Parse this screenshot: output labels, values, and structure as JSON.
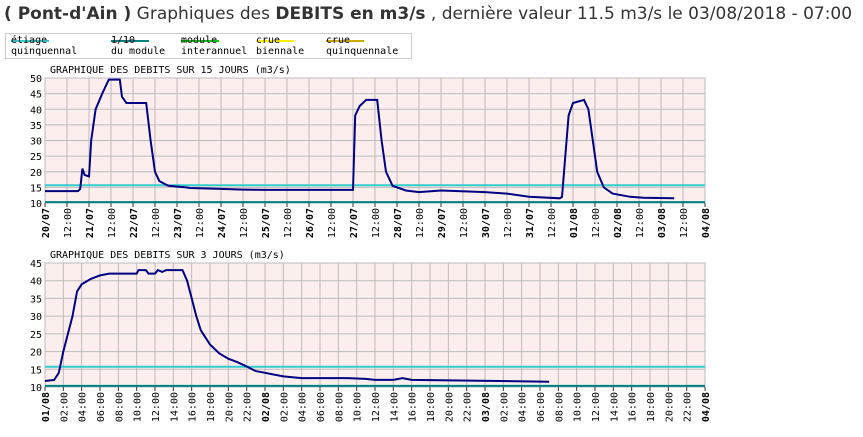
{
  "title": [
    {
      "text": "( Pont-d'Ain )",
      "bold": true
    },
    {
      "text": " Graphiques des ",
      "bold": false
    },
    {
      "text": "DEBITS en m3/s",
      "bold": true
    },
    {
      "text": " , dernière valeur 11.5 m3/s le 03/08/2018 - 07:00",
      "bold": false
    }
  ],
  "legend": [
    {
      "name": "étiage\nquinquennal",
      "color": "#33cccc"
    },
    {
      "name": "1/10\ndu module",
      "color": "#008080"
    },
    {
      "name": "module\ninterannuel",
      "color": "#00cc00"
    },
    {
      "name": "crue\nbiennale",
      "color": "#ffee00"
    },
    {
      "name": "crue\nquinquennale",
      "color": "#ccaa00"
    }
  ],
  "chart_data": [
    {
      "type": "line",
      "title": "GRAPHIQUE DES DEBITS SUR 15 JOURS (m3/s)",
      "grid": true,
      "xlim": [
        0,
        15
      ],
      "xticks": [
        {
          "value": 0,
          "label": "20/07"
        },
        {
          "value": 0.5,
          "label": "12:00"
        },
        {
          "value": 1,
          "label": "21/07"
        },
        {
          "value": 1.5,
          "label": "12:00"
        },
        {
          "value": 2,
          "label": "22/07"
        },
        {
          "value": 2.5,
          "label": "12:00"
        },
        {
          "value": 3,
          "label": "23/07"
        },
        {
          "value": 3.5,
          "label": "12:00"
        },
        {
          "value": 4,
          "label": "24/07"
        },
        {
          "value": 4.5,
          "label": "12:00"
        },
        {
          "value": 5,
          "label": "25/07"
        },
        {
          "value": 5.5,
          "label": "12:00"
        },
        {
          "value": 6,
          "label": "26/07"
        },
        {
          "value": 6.5,
          "label": "12:00"
        },
        {
          "value": 7,
          "label": "27/07"
        },
        {
          "value": 7.5,
          "label": "12:00"
        },
        {
          "value": 8,
          "label": "28/07"
        },
        {
          "value": 8.5,
          "label": "12:00"
        },
        {
          "value": 9,
          "label": "29/07"
        },
        {
          "value": 9.5,
          "label": "12:00"
        },
        {
          "value": 10,
          "label": "30/07"
        },
        {
          "value": 10.5,
          "label": "12:00"
        },
        {
          "value": 11,
          "label": "31/07"
        },
        {
          "value": 11.5,
          "label": "12:00"
        },
        {
          "value": 12,
          "label": "01/08"
        },
        {
          "value": 12.5,
          "label": "12:00"
        },
        {
          "value": 13,
          "label": "02/08"
        },
        {
          "value": 13.5,
          "label": "12:00"
        },
        {
          "value": 14,
          "label": "03/08"
        },
        {
          "value": 14.5,
          "label": "12:00"
        },
        {
          "value": 15,
          "label": "04/08"
        }
      ],
      "ylim": [
        10,
        50
      ],
      "yticks": [
        10,
        15,
        20,
        25,
        30,
        35,
        40,
        45,
        50
      ],
      "reference_lines": [
        {
          "value": 15.7,
          "color": "#33cccc"
        },
        {
          "value": 10.3,
          "color": "#008080"
        }
      ],
      "series": [
        {
          "color": "#000080",
          "x": [
            0,
            0.75,
            0.8,
            0.85,
            0.9,
            1.0,
            1.05,
            1.15,
            1.3,
            1.45,
            1.7,
            1.75,
            1.85,
            2.3,
            2.4,
            2.5,
            2.6,
            2.8,
            3.2,
            3.3,
            4.0,
            4.5,
            5.0,
            6.0,
            7.0,
            7.05,
            7.15,
            7.3,
            7.55,
            7.65,
            7.75,
            7.9,
            8.2,
            8.5,
            9.0,
            10.0,
            10.5,
            11.0,
            11.7,
            11.75,
            11.9,
            12.0,
            12.25,
            12.35,
            12.45,
            12.55,
            12.7,
            12.9,
            13.3,
            13.6,
            14.3
          ],
          "values": [
            13.8,
            13.8,
            14.5,
            21,
            19,
            18.5,
            30,
            40,
            45,
            49.5,
            49.5,
            44,
            42,
            42,
            30,
            20,
            17,
            15.5,
            15,
            14.8,
            14.5,
            14.3,
            14.2,
            14.2,
            14.2,
            38,
            41,
            43,
            43,
            30,
            20,
            15.5,
            14,
            13.5,
            14,
            13.5,
            13,
            12,
            11.5,
            12,
            38,
            42,
            43,
            40,
            30,
            20,
            15,
            13,
            12,
            11.7,
            11.5
          ]
        }
      ]
    },
    {
      "type": "line",
      "title": "GRAPHIQUE DES DEBITS SUR 3 JOURS (m3/s)",
      "grid": true,
      "xlim": [
        0,
        72
      ],
      "xticks": [
        {
          "value": 0,
          "label": "01/08"
        },
        {
          "value": 2,
          "label": "02:00"
        },
        {
          "value": 4,
          "label": "04:00"
        },
        {
          "value": 6,
          "label": "06:00"
        },
        {
          "value": 8,
          "label": "08:00"
        },
        {
          "value": 10,
          "label": "10:00"
        },
        {
          "value": 12,
          "label": "12:00"
        },
        {
          "value": 14,
          "label": "14:00"
        },
        {
          "value": 16,
          "label": "16:00"
        },
        {
          "value": 18,
          "label": "18:00"
        },
        {
          "value": 20,
          "label": "20:00"
        },
        {
          "value": 22,
          "label": "22:00"
        },
        {
          "value": 24,
          "label": "02/08"
        },
        {
          "value": 26,
          "label": "02:00"
        },
        {
          "value": 28,
          "label": "04:00"
        },
        {
          "value": 30,
          "label": "06:00"
        },
        {
          "value": 32,
          "label": "08:00"
        },
        {
          "value": 34,
          "label": "10:00"
        },
        {
          "value": 36,
          "label": "12:00"
        },
        {
          "value": 38,
          "label": "14:00"
        },
        {
          "value": 40,
          "label": "16:00"
        },
        {
          "value": 42,
          "label": "18:00"
        },
        {
          "value": 44,
          "label": "20:00"
        },
        {
          "value": 46,
          "label": "22:00"
        },
        {
          "value": 48,
          "label": "03/08"
        },
        {
          "value": 50,
          "label": "02:00"
        },
        {
          "value": 52,
          "label": "04:00"
        },
        {
          "value": 54,
          "label": "06:00"
        },
        {
          "value": 56,
          "label": "08:00"
        },
        {
          "value": 58,
          "label": "10:00"
        },
        {
          "value": 60,
          "label": "12:00"
        },
        {
          "value": 62,
          "label": "14:00"
        },
        {
          "value": 64,
          "label": "16:00"
        },
        {
          "value": 66,
          "label": "18:00"
        },
        {
          "value": 68,
          "label": "20:00"
        },
        {
          "value": 70,
          "label": "22:00"
        },
        {
          "value": 72,
          "label": "04/08"
        }
      ],
      "ylim": [
        10,
        45
      ],
      "yticks": [
        10,
        15,
        20,
        25,
        30,
        35,
        40,
        45
      ],
      "reference_lines": [
        {
          "value": 15.7,
          "color": "#33cccc"
        },
        {
          "value": 10.3,
          "color": "#008080"
        }
      ],
      "series": [
        {
          "color": "#000080",
          "x": [
            0,
            1,
            1.5,
            2,
            3,
            3.5,
            4,
            5,
            6,
            7,
            10,
            10.2,
            11,
            11.3,
            12,
            12.3,
            12.8,
            13.2,
            15,
            15.5,
            16,
            16.5,
            17,
            18,
            19,
            20,
            21,
            22,
            23,
            24,
            25,
            26,
            28,
            33,
            35,
            36,
            38,
            39,
            40,
            55
          ],
          "values": [
            11.7,
            12,
            14,
            20,
            30,
            37,
            39,
            40.5,
            41.5,
            42,
            42,
            43,
            43,
            42,
            42,
            43,
            42.5,
            43,
            43,
            40,
            35,
            30,
            26,
            22,
            19.5,
            18,
            17,
            15.8,
            14.5,
            14,
            13.5,
            13,
            12.5,
            12.5,
            12.3,
            12,
            12,
            12.5,
            12,
            11.5
          ]
        }
      ]
    }
  ]
}
